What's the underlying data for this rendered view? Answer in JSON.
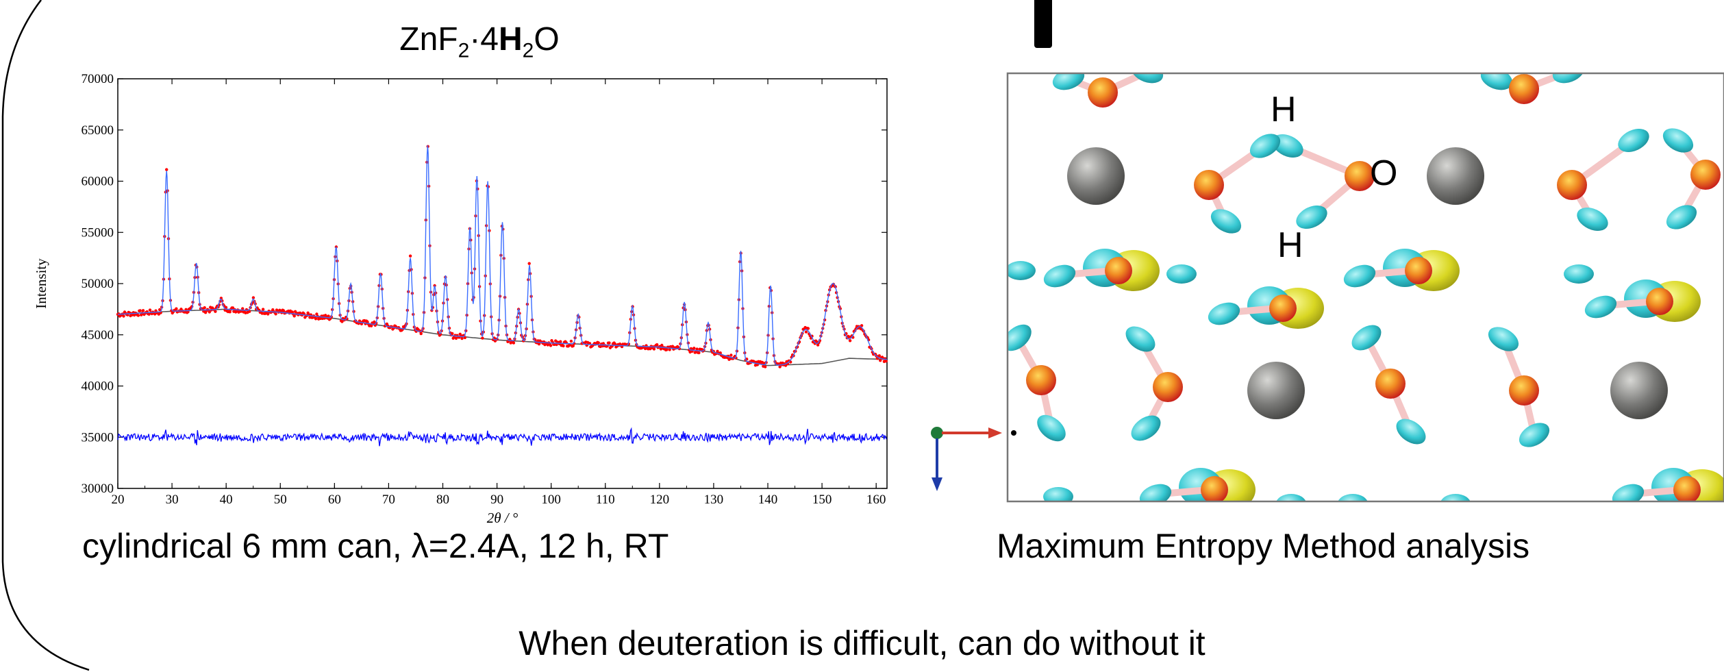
{
  "chart_title": {
    "formula_main": "ZnF",
    "sub1": "2",
    "mid": "·4",
    "bold": "H",
    "sub2": "2",
    "end": "O"
  },
  "chart_caption": "cylindrical 6 mm can, λ=2.4A, 12 h, RT",
  "mem_caption": "Maximum Entropy Method analysis",
  "bottom_note": "When deuteration is difficult, can do without it",
  "mem_labels": {
    "h_top": "H",
    "o_right": "O",
    "h_bottom": "H"
  },
  "colors": {
    "observed": "#ff0000",
    "calculated": "#3b6dff",
    "background": "#555555",
    "difference": "#0000ff",
    "oxygen": "#e8361c",
    "hydrogen_density_cyan": "#36c8d2",
    "density_yellow": "#d8d622",
    "zinc": "#7a7a78",
    "axis_x_arrow": "#d23a2c",
    "axis_y_arrow": "#1e3ca8"
  },
  "chart_data": {
    "type": "line",
    "xlabel": "2θ / °",
    "ylabel": "Intensity",
    "xlim": [
      20,
      162
    ],
    "ylim": [
      30000,
      70000
    ],
    "x_ticks": [
      20,
      30,
      40,
      50,
      60,
      70,
      80,
      90,
      100,
      110,
      120,
      130,
      140,
      150,
      160
    ],
    "y_ticks": [
      30000,
      35000,
      40000,
      45000,
      50000,
      55000,
      60000,
      65000,
      70000
    ],
    "background_curve": {
      "x": [
        20,
        30,
        40,
        50,
        60,
        70,
        80,
        90,
        100,
        110,
        120,
        130,
        135,
        140,
        150,
        155,
        162
      ],
      "y": [
        47000,
        47300,
        47500,
        47200,
        46600,
        45800,
        45000,
        44500,
        44200,
        44000,
        43800,
        43300,
        42500,
        42000,
        42200,
        42700,
        42600
      ]
    },
    "peaks": [
      {
        "x": 29,
        "y": 61000
      },
      {
        "x": 34.5,
        "y": 52000
      },
      {
        "x": 39,
        "y": 48500
      },
      {
        "x": 45,
        "y": 48500
      },
      {
        "x": 60.3,
        "y": 53600
      },
      {
        "x": 63,
        "y": 50000
      },
      {
        "x": 68.5,
        "y": 51000
      },
      {
        "x": 74,
        "y": 52500
      },
      {
        "x": 77.2,
        "y": 63500
      },
      {
        "x": 78.5,
        "y": 49800
      },
      {
        "x": 80.5,
        "y": 50800
      },
      {
        "x": 85,
        "y": 55500
      },
      {
        "x": 86.3,
        "y": 60500
      },
      {
        "x": 88.3,
        "y": 60000
      },
      {
        "x": 91,
        "y": 56000
      },
      {
        "x": 94,
        "y": 47500
      },
      {
        "x": 96,
        "y": 51800
      },
      {
        "x": 105,
        "y": 47000
      },
      {
        "x": 115,
        "y": 47800
      },
      {
        "x": 124.6,
        "y": 48200
      },
      {
        "x": 129,
        "y": 46200
      },
      {
        "x": 135,
        "y": 53200
      },
      {
        "x": 140.5,
        "y": 49800
      },
      {
        "x": 147,
        "y": 45500
      },
      {
        "x": 152,
        "y": 50000
      },
      {
        "x": 157,
        "y": 45800
      }
    ],
    "series": [
      {
        "name": "",
        "role": "observed",
        "color": "#ff0000"
      },
      {
        "name": "",
        "role": "calculated",
        "color": "#3b6dff"
      },
      {
        "name": "",
        "role": "background",
        "color": "#555555"
      },
      {
        "name": "",
        "role": "difference",
        "color": "#0000ff",
        "offset": 35000
      }
    ],
    "grid": false
  }
}
